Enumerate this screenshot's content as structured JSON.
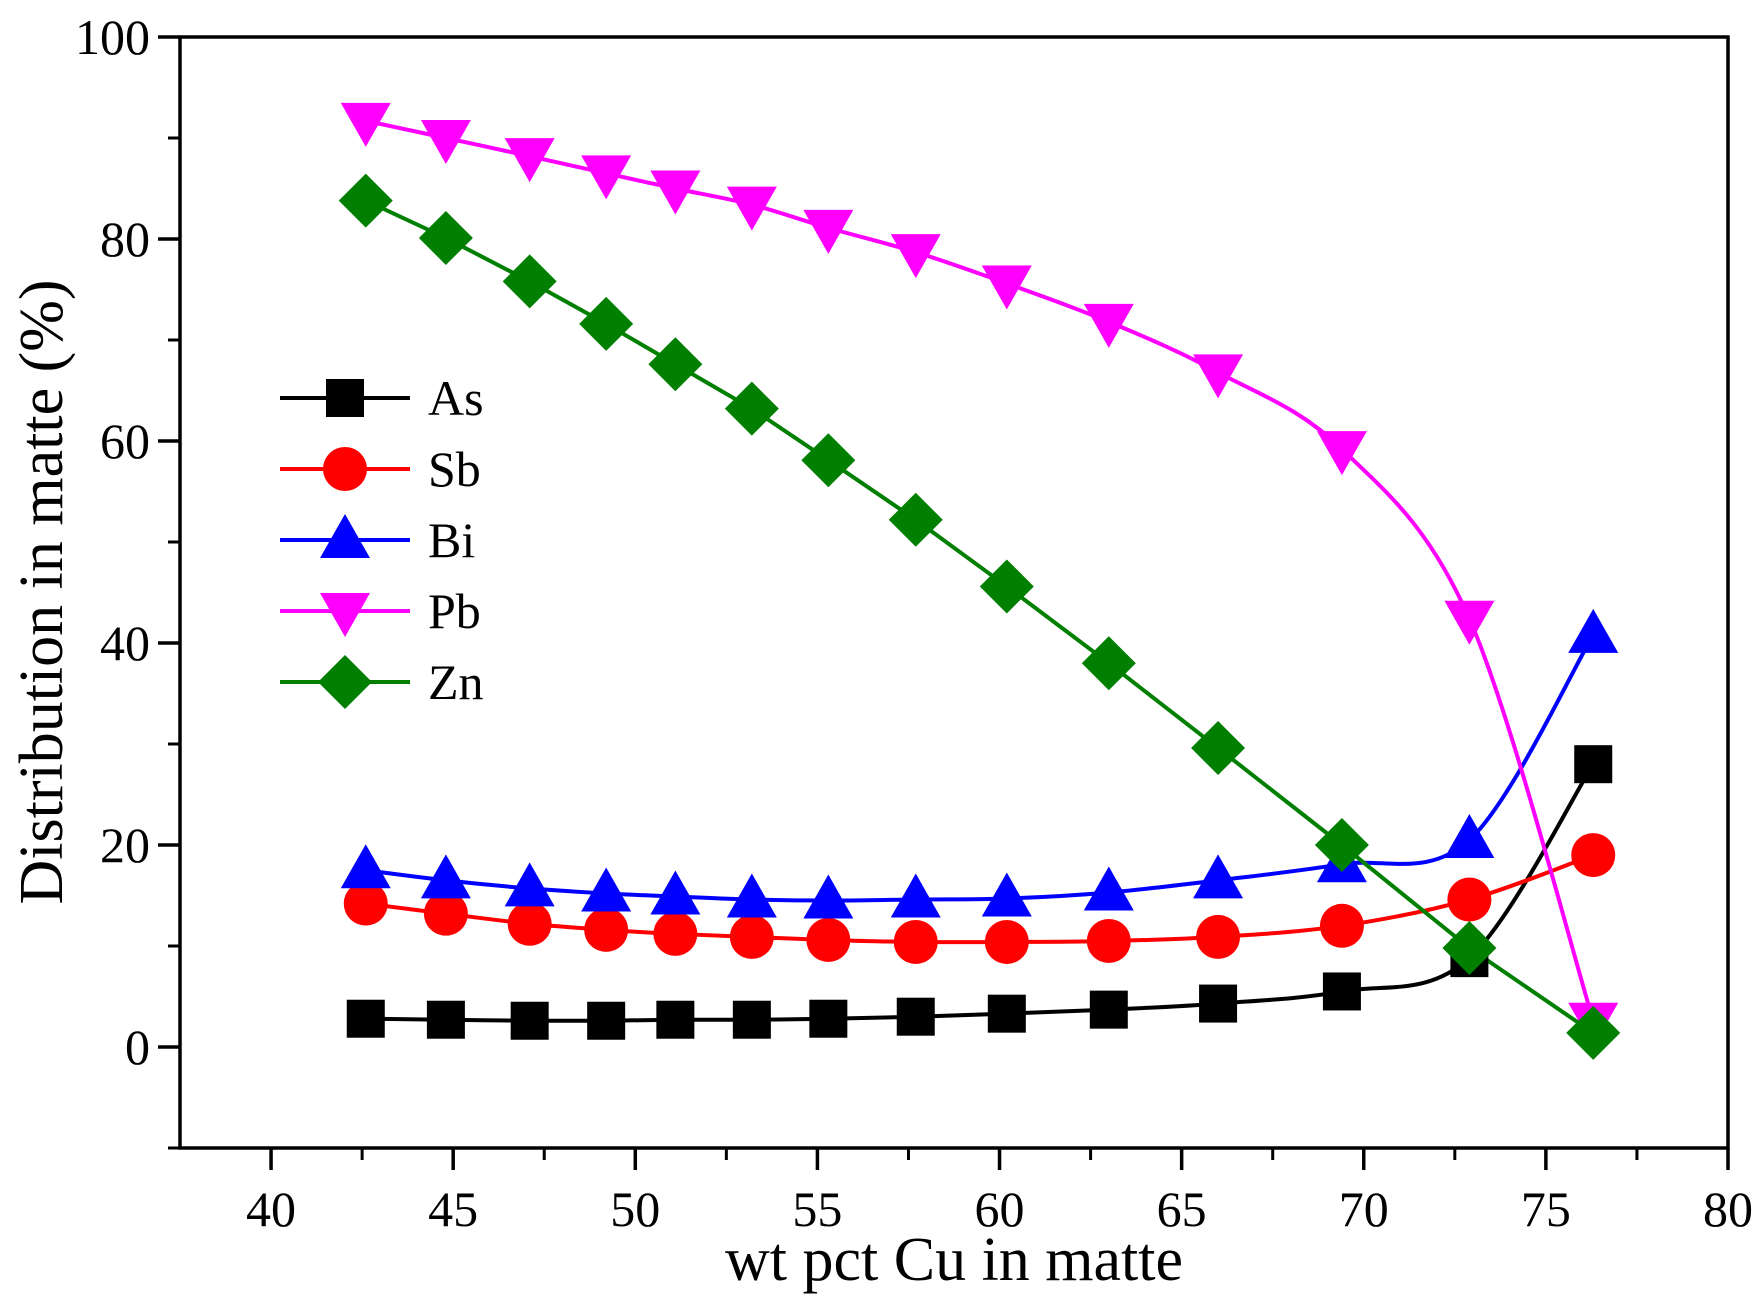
{
  "chart_data": {
    "type": "line",
    "title": "",
    "xlabel": "wt pct Cu in matte",
    "ylabel": "Distribution in matte (%)",
    "xlim": [
      37.5,
      80
    ],
    "ylim": [
      -10,
      100
    ],
    "xticks": [
      40,
      45,
      50,
      55,
      60,
      65,
      70,
      75,
      80
    ],
    "yticks": [
      0,
      20,
      40,
      60,
      80,
      100
    ],
    "xtick_labels": [
      "40",
      "45",
      "50",
      "55",
      "60",
      "65",
      "70",
      "75",
      "80"
    ],
    "ytick_labels": [
      "0",
      "20",
      "40",
      "60",
      "80",
      "100"
    ],
    "legend_position": "middle-left",
    "x": [
      42.6,
      44.8,
      47.1,
      49.2,
      51.1,
      53.2,
      55.3,
      57.7,
      60.2,
      63.0,
      66.0,
      69.4,
      72.9,
      76.3
    ],
    "series": [
      {
        "name": "As",
        "marker": "square",
        "color": "#000000",
        "values": [
          2.8,
          2.7,
          2.6,
          2.6,
          2.7,
          2.7,
          2.8,
          3.0,
          3.3,
          3.7,
          4.3,
          5.5,
          8.8,
          28.0
        ]
      },
      {
        "name": "Sb",
        "marker": "circle",
        "color": "#ff0000",
        "values": [
          14.2,
          13.2,
          12.2,
          11.6,
          11.2,
          10.9,
          10.6,
          10.4,
          10.4,
          10.5,
          10.9,
          12.0,
          14.6,
          19.0
        ]
      },
      {
        "name": "Bi",
        "marker": "triangle-up",
        "color": "#0000ff",
        "values": [
          17.5,
          16.5,
          15.7,
          15.2,
          14.9,
          14.6,
          14.5,
          14.6,
          14.7,
          15.3,
          16.5,
          18.1,
          20.5,
          40.8
        ]
      },
      {
        "name": "Pb",
        "marker": "triangle-down",
        "color": "#ff00ff",
        "values": [
          91.7,
          90.0,
          88.2,
          86.5,
          85.0,
          83.4,
          81.1,
          78.7,
          75.6,
          71.8,
          66.8,
          59.2,
          42.4,
          2.6
        ]
      },
      {
        "name": "Zn",
        "marker": "diamond",
        "color": "#007f00",
        "values": [
          83.8,
          80.1,
          75.8,
          71.6,
          67.6,
          63.2,
          58.1,
          52.2,
          45.6,
          38.0,
          29.6,
          20.0,
          9.8,
          1.4
        ]
      }
    ]
  }
}
